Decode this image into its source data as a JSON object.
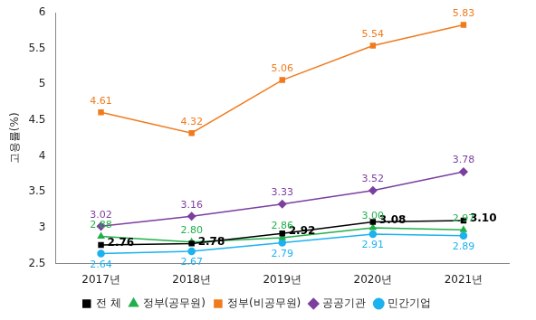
{
  "chart_data": {
    "type": "line",
    "categories": [
      "2017년",
      "2018년",
      "2019년",
      "2020년",
      "2021년"
    ],
    "y_label": "고용률(%)",
    "ylim": [
      2.5,
      6
    ],
    "yticks": [
      2.5,
      3,
      3.5,
      4,
      4.5,
      5,
      5.5,
      6
    ],
    "grid": false,
    "legend": "bottom",
    "data_labels": true,
    "series": [
      {
        "name": "전 체",
        "color": "#000000",
        "marker": "square",
        "values": [
          2.76,
          2.78,
          2.92,
          3.08,
          3.1
        ],
        "value_labels": [
          "2.76",
          "2.78",
          "2.92",
          "3.08",
          "3.10"
        ]
      },
      {
        "name": "정부(공무원)",
        "color": "#21b04b",
        "marker": "triangle",
        "values": [
          2.88,
          2.8,
          2.86,
          3.0,
          2.97
        ],
        "value_labels": [
          "2.88",
          "2.80",
          "2.86",
          "3.00",
          "2.97"
        ]
      },
      {
        "name": "정부(비공무원)",
        "color": "#f07b1d",
        "marker": "square",
        "values": [
          4.61,
          4.32,
          5.06,
          5.54,
          5.83
        ],
        "value_labels": [
          "4.61",
          "4.32",
          "5.06",
          "5.54",
          "5.83"
        ]
      },
      {
        "name": "공공기관",
        "color": "#7b3fa0",
        "marker": "diamond",
        "values": [
          3.02,
          3.16,
          3.33,
          3.52,
          3.78
        ],
        "value_labels": [
          "3.02",
          "3.16",
          "3.33",
          "3.52",
          "3.78"
        ]
      },
      {
        "name": "민간기업",
        "color": "#1cb2ee",
        "marker": "circle",
        "values": [
          2.64,
          2.67,
          2.79,
          2.91,
          2.89
        ],
        "value_labels": [
          "2.64",
          "2.67",
          "2.79",
          "2.91",
          "2.89"
        ]
      }
    ]
  }
}
